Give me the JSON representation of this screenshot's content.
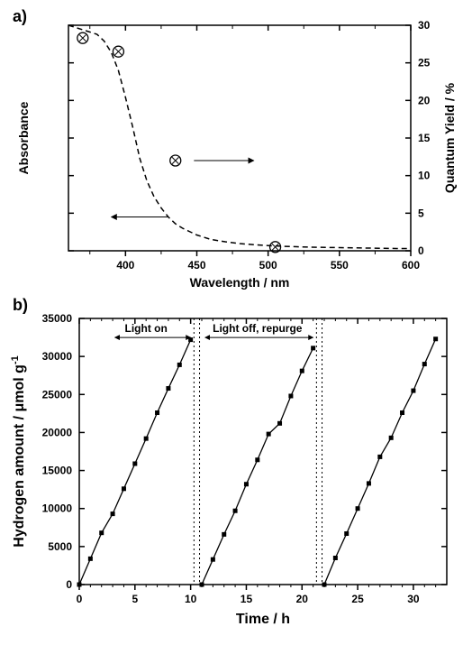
{
  "panel_a": {
    "label": "a)",
    "type": "line+scatter",
    "x_axis": {
      "label": "Wavelength / nm",
      "min": 360,
      "max": 600,
      "ticks": [
        400,
        450,
        500,
        550,
        600
      ]
    },
    "y_left": {
      "label": "Absorbance",
      "min": 0,
      "max": 1
    },
    "y_right": {
      "label": "Quantum Yield / %",
      "min": 0,
      "max": 30,
      "ticks": [
        0,
        5,
        10,
        15,
        20,
        25,
        30
      ]
    },
    "absorbance_curve": {
      "style": "dashed",
      "color": "#000000",
      "stroke_width": 1.5,
      "data": [
        [
          360,
          1.0
        ],
        [
          365,
          0.99
        ],
        [
          370,
          0.98
        ],
        [
          375,
          0.97
        ],
        [
          380,
          0.96
        ],
        [
          385,
          0.93
        ],
        [
          390,
          0.88
        ],
        [
          395,
          0.8
        ],
        [
          400,
          0.68
        ],
        [
          405,
          0.55
        ],
        [
          410,
          0.41
        ],
        [
          415,
          0.31
        ],
        [
          420,
          0.24
        ],
        [
          425,
          0.19
        ],
        [
          430,
          0.15
        ],
        [
          435,
          0.12
        ],
        [
          440,
          0.1
        ],
        [
          445,
          0.085
        ],
        [
          450,
          0.07
        ],
        [
          455,
          0.06
        ],
        [
          460,
          0.05
        ],
        [
          465,
          0.045
        ],
        [
          470,
          0.04
        ],
        [
          475,
          0.036
        ],
        [
          480,
          0.032
        ],
        [
          490,
          0.027
        ],
        [
          500,
          0.023
        ],
        [
          510,
          0.02
        ],
        [
          520,
          0.018
        ],
        [
          530,
          0.016
        ],
        [
          540,
          0.015
        ],
        [
          550,
          0.014
        ],
        [
          560,
          0.013
        ],
        [
          570,
          0.012
        ],
        [
          580,
          0.011
        ],
        [
          590,
          0.01
        ],
        [
          600,
          0.01
        ]
      ]
    },
    "quantum_yield_points": {
      "marker": "circle-x",
      "color": "#000000",
      "size": 6,
      "data": [
        [
          370,
          28.3
        ],
        [
          395,
          26.5
        ],
        [
          435,
          12.0
        ],
        [
          505,
          0.5
        ]
      ]
    },
    "arrows": {
      "left_arrow": {
        "from": [
          430,
          0.15
        ],
        "to": [
          390,
          0.15
        ],
        "maps_to": "y_left"
      },
      "right_arrow": {
        "from": [
          448,
          12.0
        ],
        "to": [
          490,
          12.0
        ],
        "maps_to": "y_right"
      }
    },
    "background_color": "#ffffff",
    "label_fontsize": 14,
    "tick_fontsize": 12
  },
  "panel_b": {
    "label": "b)",
    "type": "line+scatter",
    "x_axis": {
      "label": "Time / h",
      "min": 0,
      "max": 33,
      "ticks": [
        0,
        5,
        10,
        15,
        20,
        25,
        30
      ]
    },
    "y_axis": {
      "label": "Hydrogen amount / μmol g⁻¹",
      "min": 0,
      "max": 35000,
      "ticks": [
        0,
        5000,
        10000,
        15000,
        20000,
        25000,
        30000,
        35000
      ]
    },
    "annotations": {
      "light_on": "Light on",
      "light_off": "Light off, repurge"
    },
    "cycle_dividers": [
      10.3,
      10.8,
      21.3,
      21.8
    ],
    "divider_style": "dotted",
    "divider_color": "#000000",
    "cycles": [
      {
        "marker": "square",
        "marker_size": 5,
        "line_color": "#000000",
        "data": [
          [
            0,
            0
          ],
          [
            1,
            3400
          ],
          [
            2,
            6800
          ],
          [
            3,
            9300
          ],
          [
            4,
            12600
          ],
          [
            5,
            15900
          ],
          [
            6,
            19200
          ],
          [
            7,
            22600
          ],
          [
            8,
            25800
          ],
          [
            9,
            28900
          ],
          [
            10,
            32200
          ]
        ]
      },
      {
        "marker": "square",
        "marker_size": 5,
        "line_color": "#000000",
        "data": [
          [
            11,
            0
          ],
          [
            12,
            3300
          ],
          [
            13,
            6600
          ],
          [
            14,
            9700
          ],
          [
            15,
            13200
          ],
          [
            16,
            16400
          ],
          [
            17,
            19800
          ],
          [
            18,
            21200
          ],
          [
            19,
            24800
          ],
          [
            20,
            28100
          ],
          [
            21,
            31100
          ]
        ]
      },
      {
        "marker": "square",
        "marker_size": 5,
        "line_color": "#000000",
        "data": [
          [
            22,
            0
          ],
          [
            23,
            3500
          ],
          [
            24,
            6700
          ],
          [
            25,
            10000
          ],
          [
            26,
            13300
          ],
          [
            27,
            16800
          ],
          [
            28,
            19300
          ],
          [
            29,
            22600
          ],
          [
            30,
            25500
          ],
          [
            31,
            29000
          ],
          [
            32,
            32300
          ]
        ]
      }
    ],
    "background_color": "#ffffff",
    "label_fontsize": 16,
    "tick_fontsize": 12
  }
}
